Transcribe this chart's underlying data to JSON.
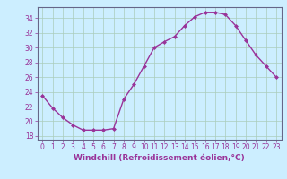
{
  "x": [
    0,
    1,
    2,
    3,
    4,
    5,
    6,
    7,
    8,
    9,
    10,
    11,
    12,
    13,
    14,
    15,
    16,
    17,
    18,
    19,
    20,
    21,
    22,
    23
  ],
  "y": [
    23.5,
    21.8,
    20.5,
    19.5,
    18.8,
    18.8,
    18.8,
    19.0,
    23.0,
    25.0,
    27.5,
    30.0,
    30.8,
    31.5,
    33.0,
    34.2,
    34.8,
    34.8,
    34.5,
    33.0,
    31.0,
    29.0,
    27.5,
    26.0
  ],
  "line_color": "#993399",
  "marker": "D",
  "markersize": 2.0,
  "linewidth": 1.0,
  "xlabel": "Windchill (Refroidissement éolien,°C)",
  "xlabel_fontsize": 6.5,
  "bg_color": "#cceeff",
  "grid_color": "#aaccbb",
  "tick_color": "#993399",
  "spine_color": "#666688",
  "ylim": [
    17.5,
    35.5
  ],
  "xlim": [
    -0.5,
    23.5
  ],
  "yticks": [
    18,
    20,
    22,
    24,
    26,
    28,
    30,
    32,
    34
  ],
  "xticks": [
    0,
    1,
    2,
    3,
    4,
    5,
    6,
    7,
    8,
    9,
    10,
    11,
    12,
    13,
    14,
    15,
    16,
    17,
    18,
    19,
    20,
    21,
    22,
    23
  ],
  "tick_fontsize": 5.5
}
